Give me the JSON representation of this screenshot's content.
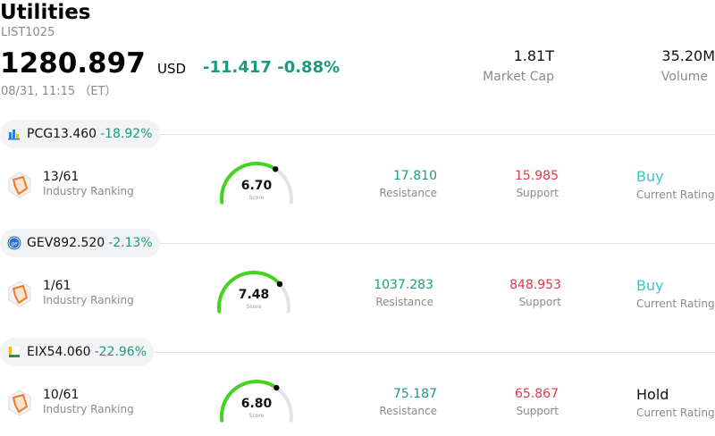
{
  "header": {
    "title": "Utilities",
    "code": "LIST1025",
    "price": "1280.897",
    "currency": "USD",
    "change": "-11.417",
    "change_pct": "-0.88%",
    "timestamp": "08/31, 11:15 （ET）"
  },
  "stats": {
    "market_cap_value": "1.81T",
    "market_cap_label": "Market Cap",
    "volume_value": "35.20M",
    "volume_label": "Volume"
  },
  "colors": {
    "positive": "#1a9a80",
    "support": "#e0394a",
    "buy": "#3cc6c6",
    "gauge_fill": "#44d320",
    "gauge_track": "#e2e2e8"
  },
  "stocks": [
    {
      "ticker": "PCG",
      "price": "13.460",
      "pct": "-18.92%",
      "logo_icon": "pcg-logo-icon",
      "rank": "13/61",
      "rank_label": "Industry Ranking",
      "score": 6.7,
      "score_text": "6.70",
      "score_label": "Score",
      "resistance": "17.810",
      "resistance_label": "Resistance",
      "support": "15.985",
      "support_label": "Support",
      "rating": "Buy",
      "rating_label": "Current Rating"
    },
    {
      "ticker": "GEV",
      "price": "892.520",
      "pct": "-2.13%",
      "logo_icon": "ge-logo-icon",
      "rank": "1/61",
      "rank_label": "Industry Ranking",
      "score": 7.48,
      "score_text": "7.48",
      "score_label": "Score",
      "resistance": "1037.283",
      "resistance_label": "Resistance",
      "support": "848.953",
      "support_label": "Support",
      "rating": "Buy",
      "rating_label": "Current Rating"
    },
    {
      "ticker": "EIX",
      "price": "54.060",
      "pct": "-22.96%",
      "logo_icon": "eix-logo-icon",
      "rank": "10/61",
      "rank_label": "Industry Ranking",
      "score": 6.8,
      "score_text": "6.80",
      "score_label": "Score",
      "resistance": "75.187",
      "resistance_label": "Resistance",
      "support": "65.867",
      "support_label": "Support",
      "rating": "Hold",
      "rating_label": "Current Rating"
    }
  ]
}
